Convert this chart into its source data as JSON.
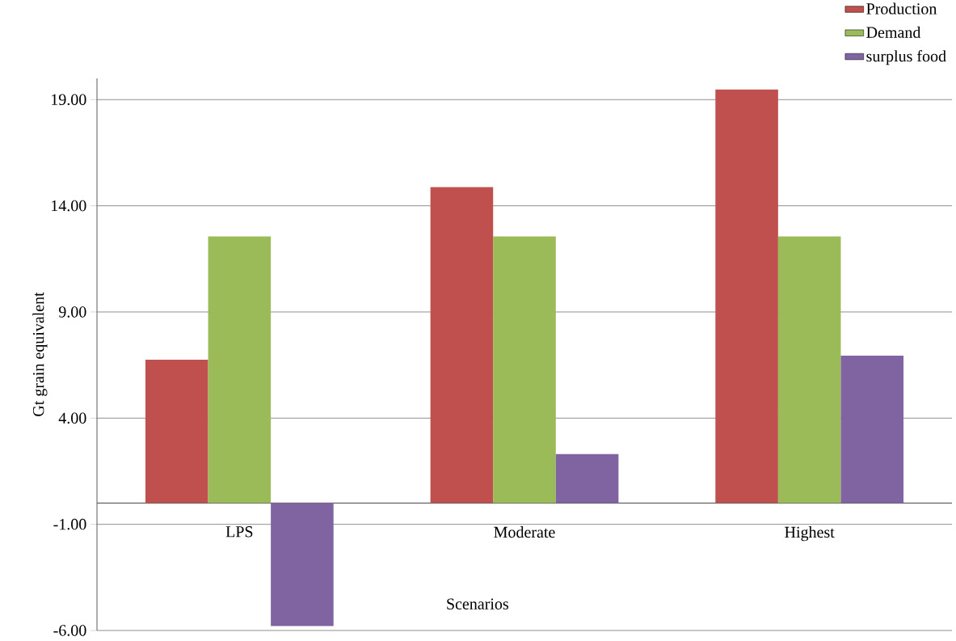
{
  "chart_data": {
    "type": "bar",
    "xlabel": "Scenarios",
    "ylabel": "Gt grain equivalent",
    "categories": [
      "LPS",
      "Moderate",
      "Highest"
    ],
    "series": [
      {
        "name": "Production",
        "color": "#c0504d",
        "values": [
          6.75,
          14.88,
          19.48
        ]
      },
      {
        "name": "Demand",
        "color": "#9bbb59",
        "values": [
          12.56,
          12.56,
          12.56
        ]
      },
      {
        "name": "surplus food",
        "color": "#8064a2",
        "values": [
          -5.79,
          2.31,
          6.94
        ]
      }
    ],
    "ylim": [
      -6,
      20
    ],
    "yticks": [
      {
        "value": -6,
        "label": "-6.00"
      },
      {
        "value": -1,
        "label": "-1.00"
      },
      {
        "value": 4,
        "label": "4.00"
      },
      {
        "value": 9,
        "label": "9.00"
      },
      {
        "value": 14,
        "label": "14.00"
      },
      {
        "value": 19,
        "label": "19.00"
      }
    ],
    "grid": "y",
    "legend": "top right"
  }
}
